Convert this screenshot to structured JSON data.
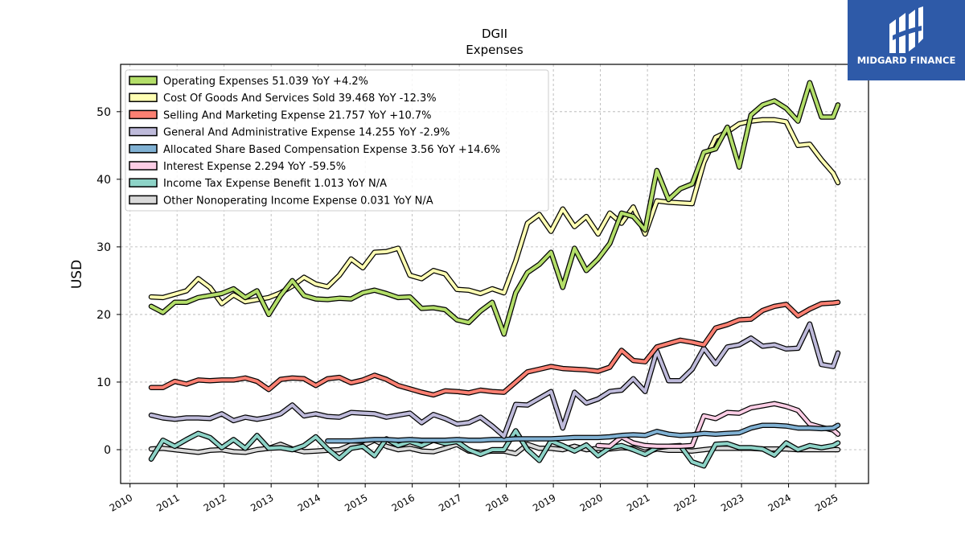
{
  "logo": {
    "text": "MIDGARD FINANCE"
  },
  "chart_data": {
    "type": "line",
    "title": "DGII",
    "subtitle": "Expenses",
    "xlabel": "",
    "ylabel": "USD",
    "xlim": [
      2009.8,
      2025.7
    ],
    "ylim": [
      -5,
      57
    ],
    "xticks": [
      2010,
      2011,
      2012,
      2013,
      2014,
      2015,
      2016,
      2017,
      2018,
      2019,
      2020,
      2021,
      2022,
      2023,
      2024,
      2025
    ],
    "yticks": [
      0,
      10,
      20,
      30,
      40,
      50
    ],
    "grid": true,
    "legend_position": "top-left",
    "x": [
      2010.45,
      2010.7,
      2010.95,
      2011.2,
      2011.45,
      2011.7,
      2011.95,
      2012.2,
      2012.45,
      2012.7,
      2012.95,
      2013.2,
      2013.45,
      2013.7,
      2013.95,
      2014.2,
      2014.45,
      2014.7,
      2014.95,
      2015.2,
      2015.45,
      2015.7,
      2015.95,
      2016.2,
      2016.45,
      2016.7,
      2016.95,
      2017.2,
      2017.45,
      2017.7,
      2017.95,
      2018.2,
      2018.45,
      2018.7,
      2018.95,
      2019.2,
      2019.45,
      2019.7,
      2019.95,
      2020.2,
      2020.45,
      2020.7,
      2020.95,
      2021.2,
      2021.45,
      2021.7,
      2021.95,
      2022.2,
      2022.45,
      2022.7,
      2022.95,
      2023.2,
      2023.45,
      2023.7,
      2023.95,
      2024.2,
      2024.45,
      2024.7,
      2024.95,
      2025.05
    ],
    "series": [
      {
        "name": "Operating Expenses",
        "label": "Operating Expenses  51.039 YoY +4.2%",
        "color": "#b3de69",
        "values": [
          21.2,
          20.3,
          21.8,
          21.8,
          22.5,
          22.8,
          23.1,
          23.8,
          22.5,
          23.5,
          20.0,
          22.8,
          25.0,
          22.8,
          22.3,
          22.2,
          22.4,
          22.3,
          23.2,
          23.6,
          23.1,
          22.5,
          22.6,
          20.9,
          21.0,
          20.7,
          19.2,
          18.8,
          20.5,
          21.8,
          17.1,
          23.2,
          26.2,
          27.4,
          29.2,
          24.0,
          29.8,
          26.5,
          28.2,
          30.5,
          35.0,
          34.5,
          32.5,
          41.3,
          37.0,
          38.6,
          39.3,
          44.0,
          44.5,
          47.7,
          41.8,
          49.5,
          51.0,
          51.6,
          50.5,
          48.6,
          54.3,
          49.2,
          49.2,
          51.0
        ]
      },
      {
        "name": "Cost Of Goods And Services Sold",
        "label": "Cost Of Goods And Services Sold  39.468 YoY -12.3%",
        "color": "#ffffb3",
        "values": [
          22.6,
          22.5,
          23.0,
          23.5,
          25.3,
          24.0,
          21.6,
          22.9,
          21.9,
          22.2,
          22.5,
          23.2,
          24.2,
          25.5,
          24.5,
          24.1,
          25.8,
          28.2,
          26.9,
          29.2,
          29.3,
          29.8,
          25.8,
          25.3,
          26.5,
          26.0,
          23.7,
          23.6,
          23.1,
          23.8,
          23.2,
          27.9,
          33.5,
          34.8,
          32.3,
          35.6,
          33.0,
          34.5,
          31.9,
          35.0,
          33.5,
          35.9,
          31.9,
          36.8,
          36.6,
          36.5,
          36.4,
          42.5,
          46.2,
          47.0,
          48.2,
          48.6,
          48.8,
          48.8,
          48.5,
          45.0,
          45.2,
          42.9,
          40.9,
          39.5
        ]
      },
      {
        "name": "Selling And Marketing Expense",
        "label": "Selling And Marketing Expense  21.757 YoY +10.7%",
        "color": "#fb8072",
        "values": [
          9.2,
          9.2,
          10.1,
          9.7,
          10.3,
          10.2,
          10.3,
          10.3,
          10.6,
          10.1,
          8.9,
          10.4,
          10.6,
          10.5,
          9.5,
          10.5,
          10.7,
          9.9,
          10.3,
          11.0,
          10.4,
          9.5,
          9.0,
          8.5,
          8.1,
          8.7,
          8.6,
          8.4,
          8.8,
          8.6,
          8.5,
          10.0,
          11.5,
          11.9,
          12.3,
          12.0,
          11.9,
          11.8,
          11.6,
          12.2,
          14.7,
          13.2,
          13.0,
          15.2,
          15.7,
          16.2,
          15.9,
          15.5,
          18.0,
          18.5,
          19.2,
          19.3,
          20.6,
          21.2,
          21.5,
          19.8,
          20.8,
          21.6,
          21.7,
          21.8
        ]
      },
      {
        "name": "General And Administrative Expense",
        "label": "General And Administrative Expense  14.255 YoY -2.9%",
        "color": "#bebada",
        "values": [
          5.1,
          4.7,
          4.5,
          4.7,
          4.7,
          4.6,
          5.3,
          4.3,
          4.8,
          4.5,
          4.8,
          5.3,
          6.6,
          5.0,
          5.3,
          4.9,
          4.8,
          5.5,
          5.4,
          5.3,
          4.8,
          5.1,
          5.4,
          4.0,
          5.2,
          4.6,
          3.8,
          4.0,
          4.8,
          3.5,
          2.0,
          6.7,
          6.6,
          7.6,
          8.6,
          3.2,
          8.5,
          6.9,
          7.5,
          8.6,
          8.8,
          10.5,
          8.6,
          14.6,
          10.2,
          10.2,
          11.9,
          15.0,
          12.7,
          15.2,
          15.5,
          16.5,
          15.3,
          15.5,
          14.9,
          15.0,
          18.6,
          12.6,
          12.3,
          14.3
        ]
      },
      {
        "name": "Allocated Share Based Compensation Expense",
        "label": "Allocated Share Based Compensation Expense  3.56 YoY +14.6%",
        "color": "#80b1d3",
        "values": [
          null,
          null,
          null,
          null,
          null,
          null,
          null,
          null,
          null,
          null,
          null,
          null,
          null,
          null,
          null,
          1.3,
          1.3,
          1.3,
          1.4,
          1.5,
          1.5,
          1.4,
          1.5,
          1.4,
          1.4,
          1.4,
          1.5,
          1.4,
          1.4,
          1.5,
          1.5,
          1.6,
          1.6,
          1.6,
          1.6,
          1.7,
          1.8,
          1.8,
          1.8,
          1.9,
          2.1,
          2.2,
          2.1,
          2.7,
          2.3,
          2.1,
          2.2,
          2.4,
          2.3,
          2.4,
          2.5,
          3.2,
          3.6,
          3.6,
          3.5,
          3.2,
          3.2,
          3.1,
          3.2,
          3.6
        ]
      },
      {
        "name": "Interest Expense",
        "label": "Interest Expense  2.294 YoY -59.5%",
        "color": "#fccde5",
        "values": [
          null,
          null,
          null,
          null,
          null,
          null,
          null,
          null,
          null,
          null,
          null,
          null,
          null,
          null,
          null,
          null,
          null,
          null,
          null,
          null,
          null,
          null,
          null,
          null,
          null,
          null,
          null,
          null,
          null,
          null,
          null,
          null,
          null,
          null,
          null,
          null,
          null,
          null,
          0.6,
          0.5,
          1.9,
          1.0,
          0.6,
          0.5,
          0.5,
          0.5,
          0.6,
          5.0,
          4.6,
          5.5,
          5.4,
          6.2,
          6.5,
          6.8,
          6.4,
          5.8,
          3.8,
          3.3,
          2.9,
          2.3
        ]
      },
      {
        "name": "Income Tax Expense Benefit",
        "label": "Income Tax Expense Benefit  1.013 YoY N/A",
        "color": "#8dd3c7",
        "values": [
          -1.4,
          1.4,
          0.5,
          1.5,
          2.4,
          1.8,
          0.3,
          1.5,
          0.2,
          2.1,
          0.2,
          0.3,
          0.0,
          0.6,
          1.9,
          0.1,
          -1.3,
          0.2,
          0.5,
          -0.9,
          1.6,
          0.6,
          1.2,
          0.6,
          1.4,
          0.9,
          1.2,
          0.0,
          -0.7,
          0.0,
          0.0,
          2.8,
          0.0,
          -1.6,
          1.3,
          0.6,
          -0.2,
          0.7,
          -0.9,
          0.3,
          0.6,
          0.0,
          -0.7,
          0.3,
          0.5,
          0.6,
          -1.8,
          -2.4,
          0.8,
          0.9,
          0.3,
          0.3,
          0.1,
          -0.8,
          1.0,
          0.0,
          0.6,
          0.3,
          0.6,
          1.0
        ]
      },
      {
        "name": "Other Nonoperating Income Expense",
        "label": "Other Nonoperating Income Expense  0.031 YoY N/A",
        "color": "#d9d9d9",
        "values": [
          0.1,
          0.2,
          0.0,
          -0.2,
          -0.4,
          -0.1,
          0.0,
          -0.3,
          -0.4,
          0.0,
          0.2,
          0.8,
          0.1,
          -0.3,
          -0.2,
          -0.1,
          0.0,
          0.7,
          0.6,
          1.4,
          0.5,
          0.0,
          0.2,
          -0.2,
          -0.3,
          0.2,
          0.8,
          -0.2,
          -0.4,
          -0.2,
          -0.2,
          -0.6,
          0.8,
          0.2,
          0.2,
          0.0,
          0.5,
          0.0,
          0.2,
          0.1,
          0.3,
          0.2,
          -0.4,
          0.1,
          -0.1,
          -0.1,
          -0.2,
          0.0,
          0.2,
          0.2,
          0.2,
          0.2,
          0.1,
          0.1,
          0.1,
          0.0,
          0.0,
          0.0,
          0.0,
          0.0
        ]
      }
    ]
  }
}
